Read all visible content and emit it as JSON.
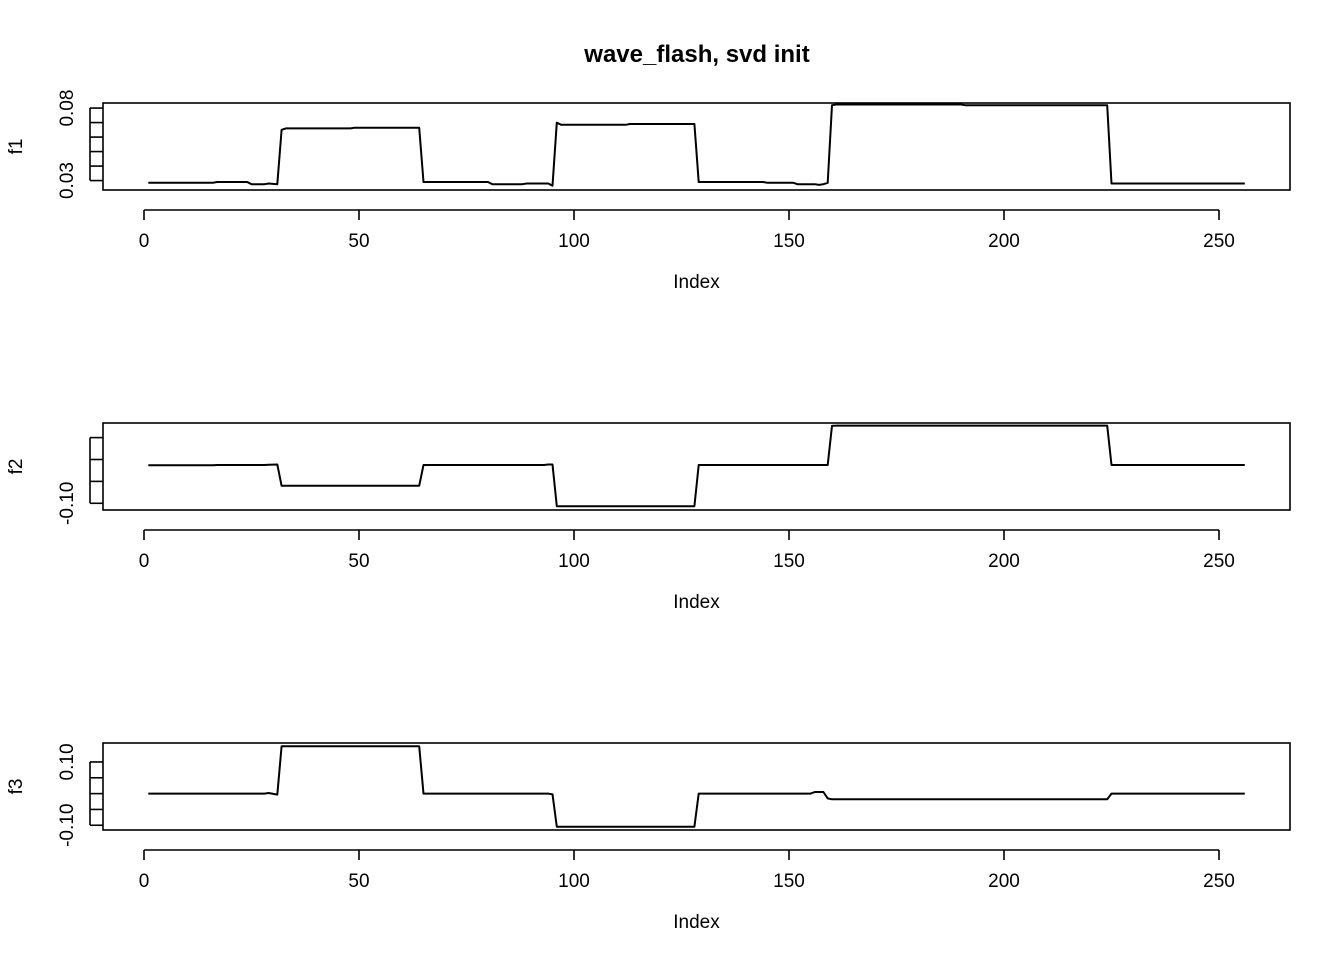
{
  "chart_data": {
    "type": "line",
    "title": "wave_flash, svd init",
    "panels": [
      {
        "ylabel": "f1",
        "xlabel": "Index",
        "xlim": [
          1,
          256
        ],
        "ylim": [
          0.0235,
          0.0835
        ],
        "xticks": [
          0,
          50,
          100,
          150,
          200,
          250
        ],
        "yticks": [
          0.03,
          0.04,
          0.05,
          0.06,
          0.07,
          0.08
        ],
        "ytick_labels": [
          "0.03",
          "",
          "",
          "",
          "",
          "0.08"
        ],
        "x": [
          1,
          16,
          17,
          24,
          25,
          28,
          29,
          31,
          32,
          33,
          34,
          48,
          49,
          64,
          65,
          80,
          81,
          88,
          89,
          94,
          95,
          96,
          97,
          112,
          113,
          127,
          128,
          129,
          144,
          145,
          151,
          152,
          156,
          157,
          158,
          159,
          160,
          161,
          190,
          191,
          224,
          225,
          256
        ],
        "y": [
          0.0285,
          0.0285,
          0.029,
          0.029,
          0.0275,
          0.0275,
          0.028,
          0.0275,
          0.065,
          0.066,
          0.066,
          0.066,
          0.0665,
          0.0665,
          0.029,
          0.029,
          0.0275,
          0.0275,
          0.028,
          0.028,
          0.0265,
          0.07,
          0.0685,
          0.0685,
          0.069,
          0.069,
          0.069,
          0.029,
          0.029,
          0.0285,
          0.0285,
          0.0275,
          0.0275,
          0.027,
          0.0275,
          0.0285,
          0.082,
          0.0825,
          0.0825,
          0.082,
          0.082,
          0.028,
          0.028
        ]
      },
      {
        "ylabel": "f2",
        "xlabel": "Index",
        "xlim": [
          1,
          256
        ],
        "ylim": [
          -0.123,
          0.175
        ],
        "xticks": [
          0,
          50,
          100,
          150,
          200,
          250
        ],
        "yticks": [
          -0.1,
          -0.025,
          0.05,
          0.125
        ],
        "ytick_labels": [
          "-0.10",
          "",
          "",
          ""
        ],
        "x": [
          1,
          16,
          17,
          28,
          29,
          31,
          32,
          64,
          65,
          80,
          81,
          88,
          89,
          93,
          94,
          95,
          96,
          128,
          129,
          144,
          145,
          159,
          160,
          161,
          224,
          225,
          256
        ],
        "y": [
          0.03,
          0.03,
          0.031,
          0.031,
          0.032,
          0.033,
          -0.04,
          -0.04,
          0.031,
          0.031,
          0.031,
          0.031,
          0.031,
          0.031,
          0.033,
          0.033,
          -0.11,
          -0.11,
          0.031,
          0.031,
          0.031,
          0.031,
          0.165,
          0.166,
          0.166,
          0.031,
          0.031
        ]
      },
      {
        "ylabel": "f3",
        "xlabel": "Index",
        "xlim": [
          1,
          256
        ],
        "ylim": [
          -0.115,
          0.16
        ],
        "xticks": [
          0,
          50,
          100,
          150,
          200,
          250
        ],
        "yticks": [
          -0.1,
          -0.05,
          0.0,
          0.05,
          0.1
        ],
        "ytick_labels": [
          "-0.10",
          "",
          "",
          "",
          "0.10"
        ],
        "x": [
          1,
          16,
          17,
          28,
          29,
          31,
          32,
          48,
          49,
          64,
          65,
          93,
          94,
          95,
          96,
          128,
          129,
          155,
          156,
          158,
          159,
          160,
          224,
          225,
          256
        ],
        "y": [
          0.0,
          0.0,
          0.0,
          0.0,
          0.002,
          -0.003,
          0.15,
          0.15,
          0.15,
          0.15,
          0.0,
          0.0,
          0.0,
          -0.002,
          -0.105,
          -0.105,
          0.0,
          0.0,
          0.005,
          0.005,
          -0.015,
          -0.018,
          -0.018,
          0.0,
          0.0
        ]
      }
    ]
  }
}
